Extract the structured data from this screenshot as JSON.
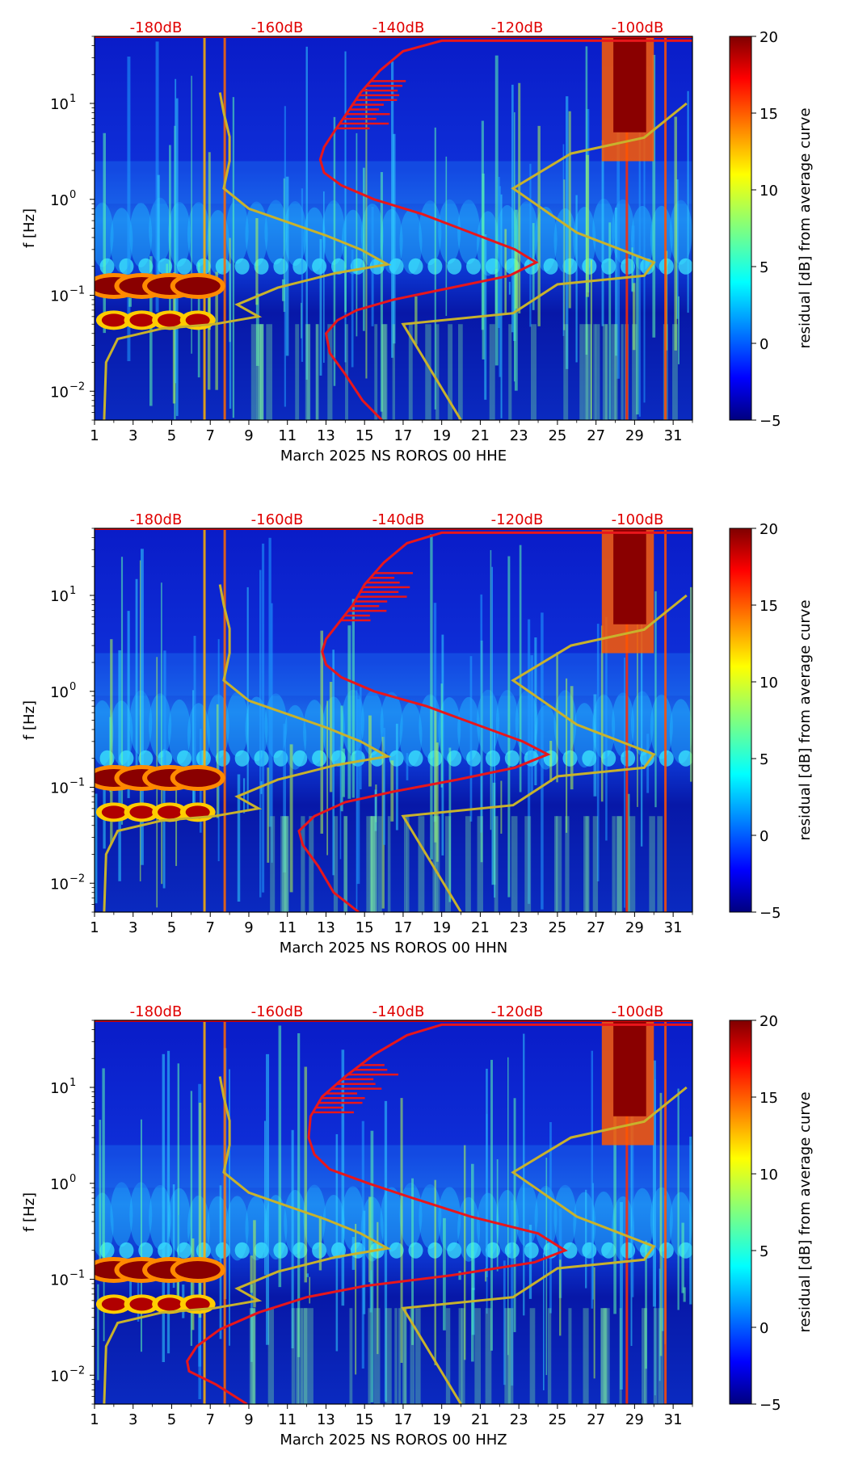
{
  "colors": {
    "psd_curve": "#e8161b",
    "noise_model": "#c8b22c",
    "db_labels": "#e00000",
    "colormap": [
      "#00007f",
      "#0000ff",
      "#007fff",
      "#00ffff",
      "#7fff7f",
      "#ffff00",
      "#ff7f00",
      "#ff0000",
      "#7f0000"
    ]
  },
  "chart_data": [
    {
      "type": "heatmap",
      "id": "hhe",
      "xlabel": "March 2025 NS ROROS 00 HHE",
      "ylabel": "f [Hz]",
      "colorbar_label": "residual [dB] from average curve",
      "colorbar_ticks": [
        "20",
        "15",
        "10",
        "5",
        "0",
        "−5"
      ],
      "clim": [
        -5,
        20
      ],
      "x_ticks": [
        "1",
        "3",
        "5",
        "7",
        "9",
        "11",
        "13",
        "15",
        "17",
        "19",
        "21",
        "23",
        "25",
        "27",
        "29",
        "31"
      ],
      "y_ticks": [
        {
          "base": "10",
          "exp": "1",
          "value": 10
        },
        {
          "base": "10",
          "exp": "0",
          "value": 1
        },
        {
          "base": "10",
          "exp": "−1",
          "value": 0.1
        },
        {
          "base": "10",
          "exp": "−2",
          "value": 0.01
        }
      ],
      "top_ticks": [
        "-180dB",
        "-160dB",
        "-140dB",
        "-120dB",
        "-100dB"
      ],
      "xlim": [
        1,
        32
      ],
      "ylim": [
        0.005,
        50
      ],
      "psd_curve_day_vs_freq": [
        [
          15.9,
          0.005
        ],
        [
          14.9,
          0.008
        ],
        [
          14.0,
          0.015
        ],
        [
          13.2,
          0.025
        ],
        [
          13.0,
          0.04
        ],
        [
          13.6,
          0.055
        ],
        [
          14.6,
          0.07
        ],
        [
          16.5,
          0.09
        ],
        [
          19.5,
          0.12
        ],
        [
          22.5,
          0.16
        ],
        [
          23.9,
          0.22
        ],
        [
          22.8,
          0.3
        ],
        [
          20.5,
          0.45
        ],
        [
          18.0,
          0.7
        ],
        [
          15.5,
          1.0
        ],
        [
          13.8,
          1.4
        ],
        [
          12.9,
          1.9
        ],
        [
          12.7,
          2.6
        ],
        [
          12.9,
          3.5
        ],
        [
          13.4,
          5.0
        ],
        [
          14.1,
          8.0
        ],
        [
          14.8,
          13.0
        ],
        [
          15.8,
          22.0
        ],
        [
          17.0,
          35.0
        ],
        [
          19.0,
          45.0
        ],
        [
          27.5,
          45.0
        ],
        [
          32.0,
          45.0
        ]
      ],
      "model_curve_day_vs_freq": [
        [
          1.5,
          0.005
        ],
        [
          1.6,
          0.02
        ],
        [
          2.2,
          0.035
        ],
        [
          4.5,
          0.045
        ],
        [
          7.2,
          0.05
        ],
        [
          9.5,
          0.06
        ],
        [
          8.4,
          0.08
        ],
        [
          10.5,
          0.12
        ],
        [
          13.5,
          0.17
        ],
        [
          16.2,
          0.21
        ],
        [
          14.8,
          0.3
        ],
        [
          13.0,
          0.42
        ],
        [
          9.0,
          0.8
        ],
        [
          7.7,
          1.3
        ],
        [
          8.0,
          2.5
        ],
        [
          8.0,
          4.5
        ],
        [
          7.7,
          8.0
        ],
        [
          7.5,
          13.0
        ]
      ],
      "model_curve_high_day_vs_freq": [
        [
          20.0,
          0.005
        ],
        [
          17.0,
          0.05
        ],
        [
          22.7,
          0.065
        ],
        [
          25.0,
          0.13
        ],
        [
          29.5,
          0.16
        ],
        [
          30.0,
          0.22
        ],
        [
          26.0,
          0.45
        ],
        [
          22.7,
          1.3
        ],
        [
          25.7,
          3.0
        ],
        [
          29.5,
          4.4
        ],
        [
          31.7,
          10.0
        ]
      ]
    },
    {
      "type": "heatmap",
      "id": "hhn",
      "xlabel": "March 2025 NS ROROS 00 HHN",
      "ylabel": "f [Hz]",
      "colorbar_label": "residual [dB] from average curve",
      "colorbar_ticks": [
        "20",
        "15",
        "10",
        "5",
        "0",
        "−5"
      ],
      "clim": [
        -5,
        20
      ],
      "x_ticks": [
        "1",
        "3",
        "5",
        "7",
        "9",
        "11",
        "13",
        "15",
        "17",
        "19",
        "21",
        "23",
        "25",
        "27",
        "29",
        "31"
      ],
      "y_ticks": [
        {
          "base": "10",
          "exp": "1",
          "value": 10
        },
        {
          "base": "10",
          "exp": "0",
          "value": 1
        },
        {
          "base": "10",
          "exp": "−1",
          "value": 0.1
        },
        {
          "base": "10",
          "exp": "−2",
          "value": 0.01
        }
      ],
      "top_ticks": [
        "-180dB",
        "-160dB",
        "-140dB",
        "-120dB",
        "-100dB"
      ],
      "xlim": [
        1,
        32
      ],
      "ylim": [
        0.005,
        50
      ],
      "psd_curve_day_vs_freq": [
        [
          14.7,
          0.005
        ],
        [
          13.4,
          0.008
        ],
        [
          12.6,
          0.015
        ],
        [
          11.8,
          0.025
        ],
        [
          11.6,
          0.035
        ],
        [
          12.4,
          0.05
        ],
        [
          14.0,
          0.07
        ],
        [
          16.5,
          0.09
        ],
        [
          19.8,
          0.12
        ],
        [
          22.8,
          0.16
        ],
        [
          24.5,
          0.22
        ],
        [
          23.2,
          0.3
        ],
        [
          20.8,
          0.45
        ],
        [
          18.2,
          0.7
        ],
        [
          15.5,
          1.0
        ],
        [
          13.8,
          1.4
        ],
        [
          13.0,
          1.9
        ],
        [
          12.8,
          2.6
        ],
        [
          13.0,
          3.5
        ],
        [
          13.6,
          5.0
        ],
        [
          14.4,
          8.0
        ],
        [
          15.0,
          13.0
        ],
        [
          16.0,
          22.0
        ],
        [
          17.2,
          35.0
        ],
        [
          19.0,
          45.0
        ],
        [
          27.5,
          45.0
        ],
        [
          32.0,
          45.0
        ]
      ],
      "model_curve_day_vs_freq": [
        [
          1.5,
          0.005
        ],
        [
          1.6,
          0.02
        ],
        [
          2.2,
          0.035
        ],
        [
          4.5,
          0.045
        ],
        [
          7.2,
          0.05
        ],
        [
          9.5,
          0.06
        ],
        [
          8.4,
          0.08
        ],
        [
          10.5,
          0.12
        ],
        [
          13.5,
          0.17
        ],
        [
          16.2,
          0.21
        ],
        [
          14.8,
          0.3
        ],
        [
          13.0,
          0.42
        ],
        [
          9.0,
          0.8
        ],
        [
          7.7,
          1.3
        ],
        [
          8.0,
          2.5
        ],
        [
          8.0,
          4.5
        ],
        [
          7.7,
          8.0
        ],
        [
          7.5,
          13.0
        ]
      ],
      "model_curve_high_day_vs_freq": [
        [
          20.0,
          0.005
        ],
        [
          17.0,
          0.05
        ],
        [
          22.7,
          0.065
        ],
        [
          25.0,
          0.13
        ],
        [
          29.5,
          0.16
        ],
        [
          30.0,
          0.22
        ],
        [
          26.0,
          0.45
        ],
        [
          22.7,
          1.3
        ],
        [
          25.7,
          3.0
        ],
        [
          29.5,
          4.4
        ],
        [
          31.7,
          10.0
        ]
      ]
    },
    {
      "type": "heatmap",
      "id": "hhz",
      "xlabel": "March 2025 NS ROROS 00 HHZ",
      "ylabel": "f [Hz]",
      "colorbar_label": "residual [dB] from average curve",
      "colorbar_ticks": [
        "20",
        "15",
        "10",
        "5",
        "0",
        "−5"
      ],
      "clim": [
        -5,
        20
      ],
      "x_ticks": [
        "1",
        "3",
        "5",
        "7",
        "9",
        "11",
        "13",
        "15",
        "17",
        "19",
        "21",
        "23",
        "25",
        "27",
        "29",
        "31"
      ],
      "y_ticks": [
        {
          "base": "10",
          "exp": "1",
          "value": 10
        },
        {
          "base": "10",
          "exp": "0",
          "value": 1
        },
        {
          "base": "10",
          "exp": "−1",
          "value": 0.1
        },
        {
          "base": "10",
          "exp": "−2",
          "value": 0.01
        }
      ],
      "top_ticks": [
        "-180dB",
        "-160dB",
        "-140dB",
        "-120dB",
        "-100dB"
      ],
      "xlim": [
        1,
        32
      ],
      "ylim": [
        0.005,
        50
      ],
      "psd_curve_day_vs_freq": [
        [
          8.9,
          0.005
        ],
        [
          7.3,
          0.008
        ],
        [
          5.9,
          0.011
        ],
        [
          5.8,
          0.014
        ],
        [
          6.3,
          0.02
        ],
        [
          7.5,
          0.03
        ],
        [
          9.5,
          0.045
        ],
        [
          12.0,
          0.065
        ],
        [
          15.0,
          0.085
        ],
        [
          19.5,
          0.11
        ],
        [
          23.8,
          0.15
        ],
        [
          25.4,
          0.2
        ],
        [
          24.0,
          0.3
        ],
        [
          20.5,
          0.45
        ],
        [
          17.5,
          0.7
        ],
        [
          15.2,
          1.0
        ],
        [
          13.2,
          1.4
        ],
        [
          12.4,
          2.0
        ],
        [
          12.1,
          3.0
        ],
        [
          12.2,
          5.0
        ],
        [
          12.8,
          8.0
        ],
        [
          14.0,
          13.0
        ],
        [
          15.5,
          22.0
        ],
        [
          17.2,
          35.0
        ],
        [
          19.0,
          45.0
        ],
        [
          27.5,
          45.0
        ],
        [
          32.0,
          45.0
        ]
      ],
      "model_curve_day_vs_freq": [
        [
          1.5,
          0.005
        ],
        [
          1.6,
          0.02
        ],
        [
          2.2,
          0.035
        ],
        [
          4.5,
          0.045
        ],
        [
          7.2,
          0.05
        ],
        [
          9.5,
          0.06
        ],
        [
          8.4,
          0.08
        ],
        [
          10.5,
          0.12
        ],
        [
          13.5,
          0.17
        ],
        [
          16.2,
          0.21
        ],
        [
          14.8,
          0.3
        ],
        [
          13.0,
          0.42
        ],
        [
          9.0,
          0.8
        ],
        [
          7.7,
          1.3
        ],
        [
          8.0,
          2.5
        ],
        [
          8.0,
          4.5
        ],
        [
          7.7,
          8.0
        ],
        [
          7.5,
          13.0
        ]
      ],
      "model_curve_high_day_vs_freq": [
        [
          20.0,
          0.005
        ],
        [
          17.0,
          0.05
        ],
        [
          22.7,
          0.065
        ],
        [
          25.0,
          0.13
        ],
        [
          29.5,
          0.16
        ],
        [
          30.0,
          0.22
        ],
        [
          26.0,
          0.45
        ],
        [
          22.7,
          1.3
        ],
        [
          25.7,
          3.0
        ],
        [
          29.5,
          4.4
        ],
        [
          31.7,
          10.0
        ]
      ]
    }
  ]
}
